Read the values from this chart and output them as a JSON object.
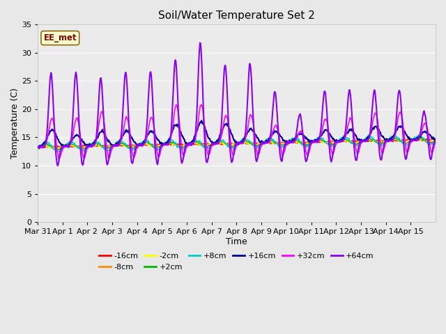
{
  "title": "Soil/Water Temperature Set 2",
  "xlabel": "Time",
  "ylabel": "Temperature (C)",
  "ylim": [
    0,
    35
  ],
  "yticks": [
    0,
    5,
    10,
    15,
    20,
    25,
    30,
    35
  ],
  "annotation_text": "EE_met",
  "annotation_color": "#8B0000",
  "annotation_bg": "#FFFFCC",
  "fig_facecolor": "#E8E8E8",
  "plot_facecolor": "#EBEBEB",
  "grid_color": "#FFFFFF",
  "series": {
    "-16cm": {
      "color": "#FF0000",
      "lw": 1.0
    },
    "-8cm": {
      "color": "#FF8C00",
      "lw": 1.0
    },
    "-2cm": {
      "color": "#FFFF00",
      "lw": 1.0
    },
    "+2cm": {
      "color": "#00BB00",
      "lw": 1.0
    },
    "+8cm": {
      "color": "#00CCCC",
      "lw": 1.0
    },
    "+16cm": {
      "color": "#000099",
      "lw": 1.5
    },
    "+32cm": {
      "color": "#FF00FF",
      "lw": 1.2
    },
    "+64cm": {
      "color": "#8B00FF",
      "lw": 1.5
    }
  },
  "x_tick_labels": [
    "Mar 31",
    "Apr 1",
    "Apr 2",
    "Apr 3",
    "Apr 4",
    "Apr 5",
    "Apr 6",
    "Apr 7",
    "Apr 8",
    "Apr 9",
    "Apr 10",
    "Apr 11",
    "Apr 12",
    "Apr 13",
    "Apr 14",
    "Apr 15"
  ],
  "n_days": 16,
  "pts_per_day": 48,
  "spike64_heights": [
    13,
    13,
    12,
    13,
    13,
    15,
    18,
    14,
    14,
    9,
    5,
    9,
    9,
    9,
    9,
    5
  ],
  "spike32_heights": [
    5,
    5,
    6,
    5,
    5,
    7,
    7,
    5,
    5,
    3,
    2,
    4,
    4,
    5,
    5,
    3
  ]
}
